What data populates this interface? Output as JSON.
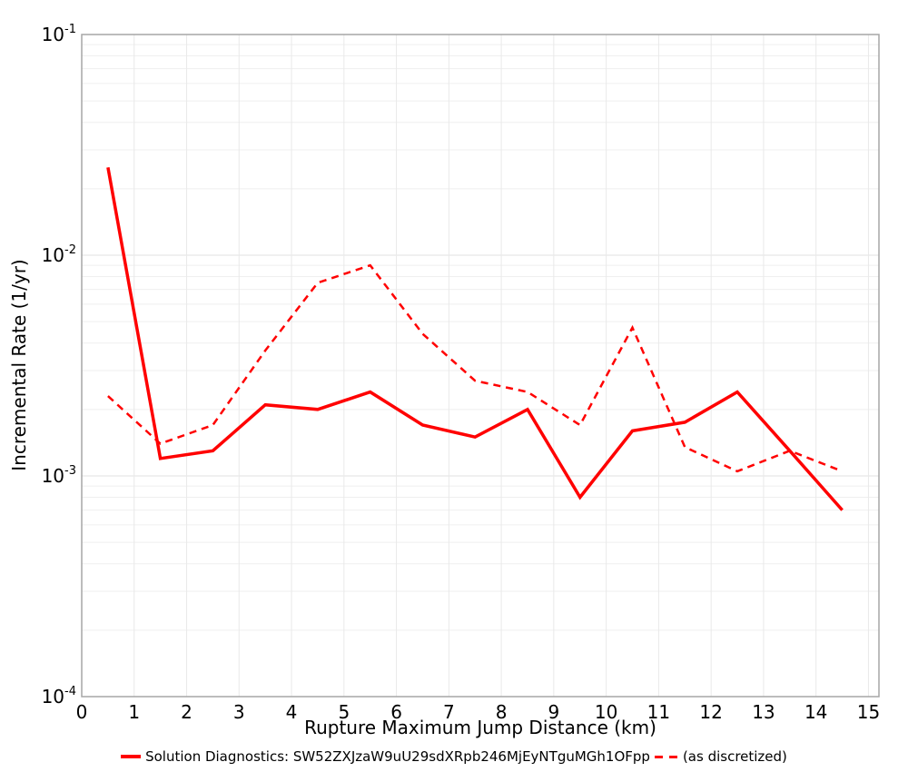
{
  "figure": {
    "xlabel": "Rupture Maximum Jump Distance (km)",
    "ylabel": "Incremental Rate (1/yr)"
  },
  "legend": {
    "entries": [
      {
        "label": "Solution Diagnostics: SW52ZXJzaW9uU29sdXRpb246MjEyNTguMGh1OFpp",
        "style": "solid"
      },
      {
        "label": "(as discretized)",
        "style": "dashed"
      }
    ]
  },
  "colors": {
    "series_red": "#ff0000",
    "frame": "#a6a6a6",
    "grid_major": "#e2e2e2",
    "grid_minor": "#efefef",
    "grid_vertical": "#e9e9e9",
    "text": "#000000"
  },
  "chart_data": {
    "type": "line",
    "title": "",
    "xlabel": "Rupture Maximum Jump Distance (km)",
    "ylabel": "Incremental Rate (1/yr)",
    "yscale": "log",
    "xlim": [
      0,
      15.2
    ],
    "ylim": [
      0.0001,
      0.1
    ],
    "grid": true,
    "legend_position": "bottom",
    "xticks": [
      0,
      1,
      2,
      3,
      4,
      5,
      6,
      7,
      8,
      9,
      10,
      11,
      12,
      13,
      14,
      15
    ],
    "ytick_base": "10",
    "ytick_exponents": [
      "-1",
      "-2",
      "-3",
      "-4"
    ],
    "x": [
      0.5,
      1.5,
      2.5,
      3.5,
      4.5,
      5.5,
      6.5,
      7.5,
      8.5,
      9.5,
      10.5,
      11.5,
      12.5,
      13.5,
      14.5
    ],
    "series": [
      {
        "name": "Solution Diagnostics: SW52ZXJzaW9uU29sdXRpb246MjEyNTguMGh1OFpp",
        "style": "solid",
        "color": "#ff0000",
        "width": 3.5,
        "values": [
          0.025,
          0.0012,
          0.0013,
          0.0021,
          0.002,
          0.0024,
          0.0017,
          0.0015,
          0.002,
          0.0008,
          0.0016,
          0.00175,
          0.0024,
          0.0013,
          0.0007
        ]
      },
      {
        "name": "(as discretized)",
        "style": "dashed",
        "color": "#ff0000",
        "width": 2.5,
        "values": [
          0.0023,
          0.0014,
          0.0017,
          0.0037,
          0.0075,
          0.009,
          0.0044,
          0.0027,
          0.0024,
          0.0017,
          0.0047,
          0.00135,
          0.00105,
          0.0013,
          0.00105
        ]
      }
    ]
  }
}
